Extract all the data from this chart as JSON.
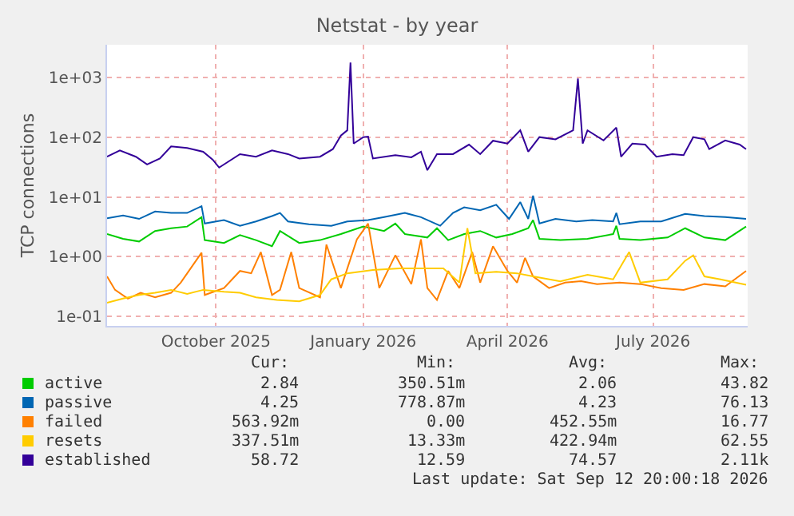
{
  "chart_data": {
    "type": "line",
    "title": "Netstat - by year",
    "ylabel": "TCP connections",
    "log": true,
    "grid": true,
    "legend": "bottom",
    "marker": "none",
    "line_style": "solid",
    "xlim": [
      "2025-08-08",
      "2026-09-12"
    ],
    "xticks": [
      {
        "value": "2025-10-15",
        "label": "October 2025"
      },
      {
        "value": "2026-01-15",
        "label": "January 2026"
      },
      {
        "value": "2026-04-15",
        "label": "April 2026"
      },
      {
        "value": "2026-07-15",
        "label": "July 2026"
      }
    ],
    "ylim": [
      0.07,
      3500
    ],
    "yticks": [
      {
        "value": 0.1,
        "label": "1e-01"
      },
      {
        "value": 1,
        "label": "1e+00"
      },
      {
        "value": 10,
        "label": "1e+01"
      },
      {
        "value": 100,
        "label": "1e+02"
      },
      {
        "value": 1000,
        "label": "1e+03"
      }
    ],
    "series": [
      {
        "name": "active",
        "color": "#00cc00",
        "x": [
          "2025-08-08",
          "2025-08-18",
          "2025-08-28",
          "2025-09-07",
          "2025-09-17",
          "2025-09-27",
          "2025-10-06",
          "2025-10-08",
          "2025-10-20",
          "2025-10-30",
          "2025-11-09",
          "2025-11-19",
          "2025-11-24",
          "2025-12-06",
          "2025-12-19",
          "2026-01-01",
          "2026-01-15",
          "2026-01-28",
          "2026-02-04",
          "2026-02-10",
          "2026-02-24",
          "2026-03-02",
          "2026-03-09",
          "2026-03-19",
          "2026-03-29",
          "2026-04-08",
          "2026-04-18",
          "2026-04-28",
          "2026-05-01",
          "2026-05-05",
          "2026-05-18",
          "2026-06-04",
          "2026-06-20",
          "2026-06-22",
          "2026-06-24",
          "2026-07-07",
          "2026-07-24",
          "2026-08-04",
          "2026-08-16",
          "2026-08-29",
          "2026-09-11"
        ],
        "values": [
          2.4,
          2.0,
          1.8,
          2.7,
          3.0,
          3.2,
          4.6,
          1.9,
          1.7,
          2.3,
          1.9,
          1.5,
          2.7,
          1.7,
          1.9,
          2.4,
          3.2,
          2.7,
          3.6,
          2.4,
          2.1,
          3.0,
          1.9,
          2.4,
          2.7,
          2.1,
          2.4,
          3.0,
          4.1,
          2.0,
          1.9,
          2.0,
          2.4,
          3.3,
          2.0,
          1.9,
          2.1,
          3.0,
          2.1,
          1.9,
          3.2
        ]
      },
      {
        "name": "passive",
        "color": "#0066b3",
        "x": [
          "2025-08-08",
          "2025-08-18",
          "2025-08-28",
          "2025-09-07",
          "2025-09-17",
          "2025-09-27",
          "2025-10-06",
          "2025-10-08",
          "2025-10-20",
          "2025-10-30",
          "2025-11-09",
          "2025-11-19",
          "2025-11-24",
          "2025-11-29",
          "2025-12-12",
          "2025-12-26",
          "2026-01-05",
          "2026-01-18",
          "2026-01-28",
          "2026-02-10",
          "2026-02-20",
          "2026-03-04",
          "2026-03-12",
          "2026-03-19",
          "2026-03-29",
          "2026-04-08",
          "2026-04-16",
          "2026-04-23",
          "2026-04-28",
          "2026-05-01",
          "2026-05-05",
          "2026-05-15",
          "2026-05-28",
          "2026-06-07",
          "2026-06-20",
          "2026-06-22",
          "2026-06-24",
          "2026-07-07",
          "2026-07-20",
          "2026-08-04",
          "2026-08-16",
          "2026-08-29",
          "2026-09-11"
        ],
        "values": [
          4.4,
          4.9,
          4.3,
          5.7,
          5.4,
          5.4,
          7.0,
          3.6,
          4.1,
          3.3,
          3.9,
          4.8,
          5.4,
          3.9,
          3.5,
          3.3,
          3.9,
          4.1,
          4.6,
          5.4,
          4.6,
          3.3,
          5.4,
          6.7,
          6.0,
          7.4,
          4.3,
          8.2,
          4.3,
          10.5,
          3.6,
          4.3,
          3.9,
          4.1,
          3.9,
          5.4,
          3.5,
          3.9,
          3.9,
          5.2,
          4.8,
          4.6,
          4.3
        ]
      },
      {
        "name": "failed",
        "color": "#ff8000",
        "x": [
          "2025-08-08",
          "2025-08-13",
          "2025-08-21",
          "2025-08-29",
          "2025-09-07",
          "2025-09-17",
          "2025-09-23",
          "2025-10-06",
          "2025-10-08",
          "2025-10-20",
          "2025-10-30",
          "2025-11-06",
          "2025-11-12",
          "2025-11-19",
          "2025-11-24",
          "2025-12-01",
          "2025-12-06",
          "2025-12-19",
          "2025-12-23",
          "2026-01-01",
          "2026-01-11",
          "2026-01-18",
          "2026-01-25",
          "2026-02-04",
          "2026-02-14",
          "2026-02-20",
          "2026-02-24",
          "2026-03-02",
          "2026-03-09",
          "2026-03-16",
          "2026-03-24",
          "2026-03-29",
          "2026-04-06",
          "2026-04-15",
          "2026-04-21",
          "2026-04-26",
          "2026-05-01",
          "2026-05-11",
          "2026-05-21",
          "2026-05-31",
          "2026-06-10",
          "2026-06-24",
          "2026-07-07",
          "2026-07-20",
          "2026-08-03",
          "2026-08-16",
          "2026-08-29",
          "2026-09-11"
        ],
        "values": [
          0.47,
          0.28,
          0.2,
          0.25,
          0.21,
          0.25,
          0.37,
          1.17,
          0.23,
          0.3,
          0.58,
          0.53,
          1.2,
          0.23,
          0.28,
          1.2,
          0.3,
          0.21,
          1.6,
          0.3,
          1.96,
          3.6,
          0.3,
          1.06,
          0.35,
          1.96,
          0.3,
          0.19,
          0.58,
          0.3,
          1.2,
          0.37,
          1.5,
          0.58,
          0.37,
          0.96,
          0.47,
          0.3,
          0.37,
          0.39,
          0.35,
          0.37,
          0.35,
          0.3,
          0.28,
          0.35,
          0.32,
          0.58
        ]
      },
      {
        "name": "resets",
        "color": "#ffcc00",
        "x": [
          "2025-08-08",
          "2025-08-18",
          "2025-08-28",
          "2025-09-07",
          "2025-09-17",
          "2025-09-27",
          "2025-10-07",
          "2025-10-20",
          "2025-10-30",
          "2025-11-09",
          "2025-11-22",
          "2025-12-06",
          "2025-12-19",
          "2025-12-26",
          "2026-01-05",
          "2026-01-21",
          "2026-02-07",
          "2026-02-24",
          "2026-03-06",
          "2026-03-16",
          "2026-03-21",
          "2026-03-26",
          "2026-04-08",
          "2026-04-21",
          "2026-05-01",
          "2026-05-18",
          "2026-06-04",
          "2026-06-20",
          "2026-06-30",
          "2026-07-07",
          "2026-07-24",
          "2026-08-04",
          "2026-08-09",
          "2026-08-16",
          "2026-08-26",
          "2026-09-11"
        ],
        "values": [
          0.17,
          0.2,
          0.23,
          0.25,
          0.28,
          0.24,
          0.28,
          0.26,
          0.25,
          0.21,
          0.19,
          0.18,
          0.23,
          0.42,
          0.53,
          0.6,
          0.64,
          0.64,
          0.64,
          0.37,
          3.0,
          0.53,
          0.56,
          0.53,
          0.47,
          0.39,
          0.5,
          0.42,
          1.2,
          0.37,
          0.42,
          0.86,
          1.06,
          0.47,
          0.42,
          0.34
        ]
      },
      {
        "name": "established",
        "color": "#330099",
        "x": [
          "2025-08-08",
          "2025-08-16",
          "2025-08-26",
          "2025-09-02",
          "2025-09-10",
          "2025-09-17",
          "2025-09-27",
          "2025-10-07",
          "2025-10-13",
          "2025-10-17",
          "2025-10-30",
          "2025-11-09",
          "2025-11-19",
          "2025-11-29",
          "2025-12-06",
          "2025-12-19",
          "2025-12-27",
          "2026-01-01",
          "2026-01-05",
          "2026-01-07",
          "2026-01-09",
          "2026-01-15",
          "2026-01-18",
          "2026-01-21",
          "2026-02-04",
          "2026-02-14",
          "2026-02-20",
          "2026-02-24",
          "2026-03-02",
          "2026-03-12",
          "2026-03-22",
          "2026-03-29",
          "2026-04-06",
          "2026-04-15",
          "2026-04-23",
          "2026-04-28",
          "2026-05-05",
          "2026-05-15",
          "2026-05-26",
          "2026-05-29",
          "2026-06-01",
          "2026-06-04",
          "2026-06-14",
          "2026-06-22",
          "2026-06-25",
          "2026-07-02",
          "2026-07-10",
          "2026-07-17",
          "2026-07-27",
          "2026-08-03",
          "2026-08-09",
          "2026-08-16",
          "2026-08-19",
          "2026-08-29",
          "2026-09-07",
          "2026-09-11"
        ],
        "values": [
          47,
          60,
          47,
          35,
          44,
          70,
          66,
          57,
          42,
          31,
          52,
          47,
          60,
          52,
          44,
          47,
          63,
          106,
          130,
          1760,
          78,
          100,
          102,
          44,
          50,
          46,
          57,
          28,
          52,
          52,
          75,
          52,
          87,
          78,
          130,
          57,
          100,
          92,
          130,
          950,
          78,
          130,
          88,
          144,
          47,
          78,
          75,
          47,
          52,
          50,
          100,
          92,
          63,
          88,
          75,
          63
        ]
      }
    ],
    "annotations": [
      "Cur:",
      "Min:",
      "Avg:",
      "Max:",
      "2.84",
      "350.51m",
      "2.06",
      "43.82",
      "4.25",
      "778.87m",
      "4.23",
      "76.13",
      "563.92m",
      "0.00",
      "452.55m",
      "16.77",
      "337.51m",
      "13.33m",
      "422.94m",
      "62.55",
      "58.72",
      "12.59",
      "74.57",
      "2.11k",
      "Last update: Sat Sep 12 20:00:18 2026"
    ]
  }
}
